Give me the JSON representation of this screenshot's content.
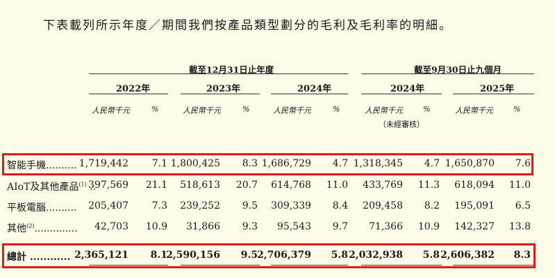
{
  "intro": "下表載列所示年度／期間我們按產品類型劃分的毛利及毛利率的明細。",
  "group_headers": {
    "annual": "截至12月31日止年度",
    "nine_months": "截至9月30日止九個月"
  },
  "years": [
    "2022年",
    "2023年",
    "2024年",
    "2024年",
    "2025年"
  ],
  "unit_label": "人民幣千元",
  "pct_label": "%",
  "unaudited_note": "（未經審核）",
  "rows": [
    {
      "label": "智能手機",
      "sup": "",
      "dots": "..........",
      "values": [
        "1,719,442",
        "7.1",
        "1,800,425",
        "8.3",
        "1,686,729",
        "4.7",
        "1,318,345",
        "4.7",
        "1,650,870",
        "7.6"
      ]
    },
    {
      "label": "AIoT及其他產品",
      "sup": "(1)",
      "dots": "..",
      "values": [
        "397,569",
        "21.1",
        "518,613",
        "20.7",
        "614,768",
        "11.0",
        "433,769",
        "11.3",
        "618,094",
        "11.0"
      ]
    },
    {
      "label": "平板電腦",
      "sup": "",
      "dots": "..........",
      "values": [
        "205,407",
        "7.3",
        "239,252",
        "9.5",
        "309,339",
        "8.4",
        "209,458",
        "8.2",
        "195,091",
        "6.5"
      ]
    },
    {
      "label": "其他",
      "sup": "(2)",
      "dots": "..............",
      "values": [
        "42,703",
        "10.9",
        "31,866",
        "9.3",
        "95,543",
        "9.7",
        "71,366",
        "10.9",
        "142,327",
        "13.8"
      ]
    },
    {
      "label": "總計",
      "sup": "",
      "dots": "............",
      "values": [
        "2,365,121",
        "8.1",
        "2,590,156",
        "9.5",
        "2,706,379",
        "5.8",
        "2,032,938",
        "5.8",
        "2,606,382",
        "8.3"
      ]
    }
  ],
  "colors": {
    "background": "#fbfbe8",
    "highlight": "#e01818"
  }
}
